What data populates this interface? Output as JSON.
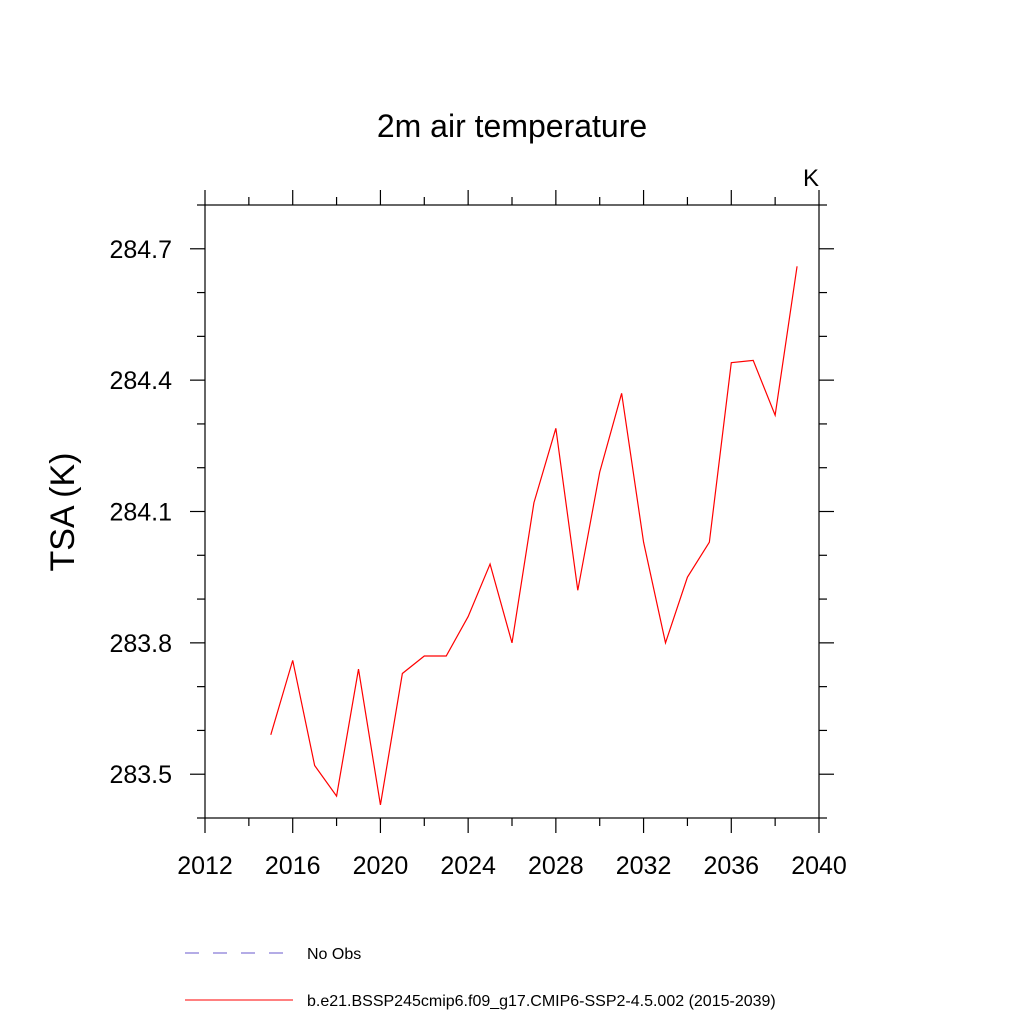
{
  "chart_data": {
    "type": "line",
    "title": "2m air temperature",
    "units_label": "K",
    "ylabel": "TSA  (K)",
    "xlabel": "",
    "xlim": [
      2012,
      2040
    ],
    "ylim": [
      283.4,
      284.8
    ],
    "x_ticks": [
      {
        "value": 2012,
        "label": "2012"
      },
      {
        "value": 2016,
        "label": "2016"
      },
      {
        "value": 2020,
        "label": "2020"
      },
      {
        "value": 2024,
        "label": "2024"
      },
      {
        "value": 2028,
        "label": "2028"
      },
      {
        "value": 2032,
        "label": "2032"
      },
      {
        "value": 2036,
        "label": "2036"
      },
      {
        "value": 2040,
        "label": "2040"
      }
    ],
    "y_ticks": [
      {
        "value": 283.5,
        "label": "283.5"
      },
      {
        "value": 283.8,
        "label": "283.8"
      },
      {
        "value": 284.1,
        "label": "284.1"
      },
      {
        "value": 284.4,
        "label": "284.4"
      },
      {
        "value": 284.7,
        "label": "284.7"
      }
    ],
    "x_minor_step": 2,
    "y_minor_step": 0.1,
    "grid": false,
    "legend_position": "bottom",
    "series": [
      {
        "name": "b.e21.BSSP245cmip6.f09_g17.CMIP6-SSP2-4.5.002 (2015-2039)",
        "color": "#ff0000",
        "dash": "solid",
        "x": [
          2015,
          2016,
          2017,
          2018,
          2019,
          2020,
          2021,
          2022,
          2023,
          2024,
          2025,
          2026,
          2027,
          2028,
          2029,
          2030,
          2031,
          2032,
          2033,
          2034,
          2035,
          2036,
          2037,
          2038,
          2039
        ],
        "y": [
          283.59,
          283.76,
          283.52,
          283.45,
          283.74,
          283.43,
          283.73,
          283.77,
          283.77,
          283.86,
          283.98,
          283.8,
          284.12,
          284.29,
          283.92,
          284.19,
          284.37,
          284.03,
          283.8,
          283.95,
          284.03,
          284.44,
          284.445,
          284.32,
          284.66
        ]
      }
    ],
    "legend": [
      {
        "label": "No Obs",
        "color": "#6a5acd",
        "dash": "dashed"
      },
      {
        "label": "b.e21.BSSP245cmip6.f09_g17.CMIP6-SSP2-4.5.002 (2015-2039)",
        "color": "#ff0000",
        "dash": "solid"
      }
    ]
  }
}
